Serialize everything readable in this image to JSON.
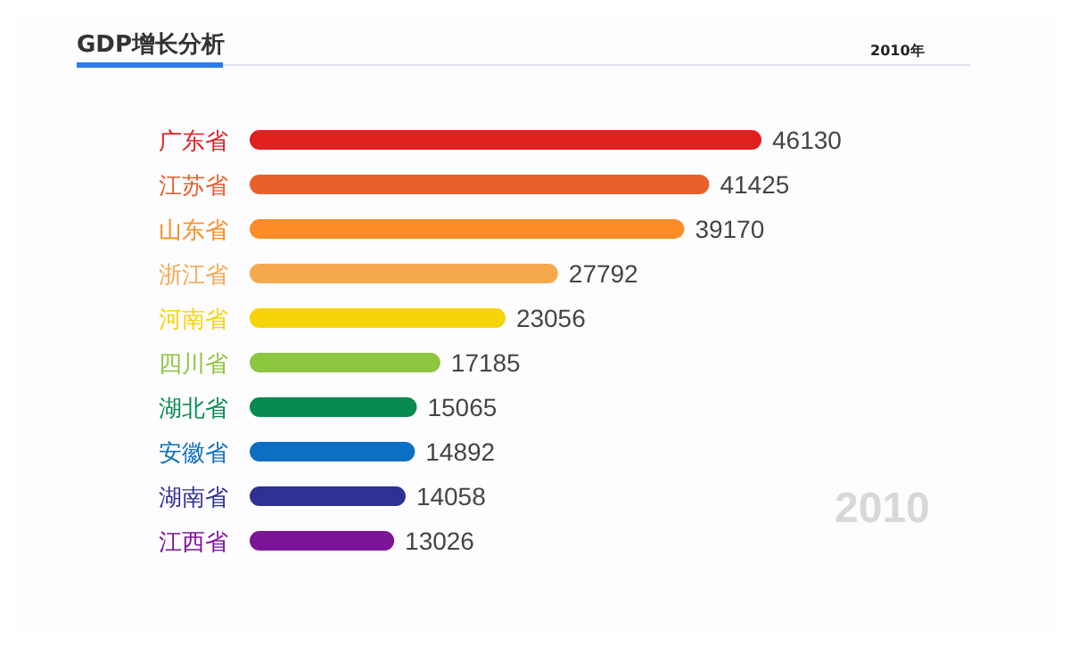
{
  "chart_data": {
    "type": "bar",
    "orientation": "horizontal",
    "title": "GDP增长分析",
    "subtitle": "2010年",
    "annotations": [
      "2010"
    ],
    "categories": [
      "广东省",
      "江苏省",
      "山东省",
      "浙江省",
      "河南省",
      "四川省",
      "湖北省",
      "安徽省",
      "湖南省",
      "江西省"
    ],
    "values": [
      46130,
      41425,
      39170,
      27792,
      23056,
      17185,
      15065,
      14892,
      14058,
      13026
    ],
    "colors": [
      "#e01f1f",
      "#e8602a",
      "#fb8c27",
      "#f6a84e",
      "#f5d40a",
      "#8dc63f",
      "#068a4f",
      "#0d6fc1",
      "#2e3192",
      "#7b1497"
    ],
    "tick_labels": false,
    "data_labels": true
  }
}
